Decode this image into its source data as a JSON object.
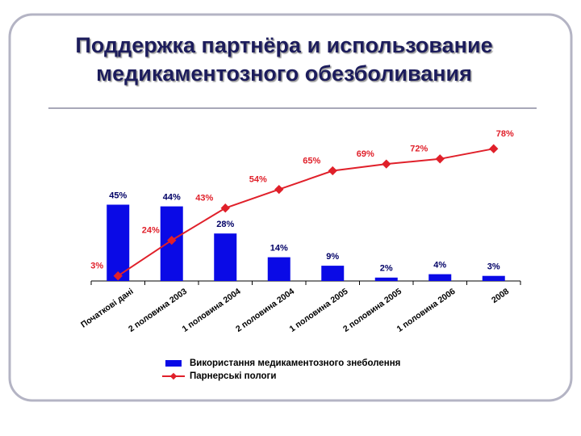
{
  "chart_data": {
    "type": "bar-line",
    "title": [
      "Поддержка партнёра и использование",
      "медикаментозного обезболивания"
    ],
    "categories": [
      "Початкові дані",
      "2 половина 2003",
      "1 половина 2004",
      "2 половина 2004",
      "1 половина 2005",
      "2 половина 2005",
      "1 половина 2006",
      "2008"
    ],
    "series": [
      {
        "name": "Використання медикаментозного знеболення",
        "type": "bar",
        "color": "#0a0ae6",
        "values": [
          45,
          44,
          28,
          14,
          9,
          2,
          4,
          3
        ],
        "value_labels": [
          "45%",
          "44%",
          "28%",
          "14%",
          "9%",
          "2%",
          "4%",
          "3%"
        ]
      },
      {
        "name": "Парнерські пологи",
        "type": "line",
        "color": "#e0202a",
        "values": [
          3,
          24,
          43,
          54,
          65,
          69,
          72,
          78
        ],
        "value_labels": [
          "3%",
          "24%",
          "43%",
          "54%",
          "65%",
          "69%",
          "72%",
          "78%"
        ]
      }
    ]
  }
}
